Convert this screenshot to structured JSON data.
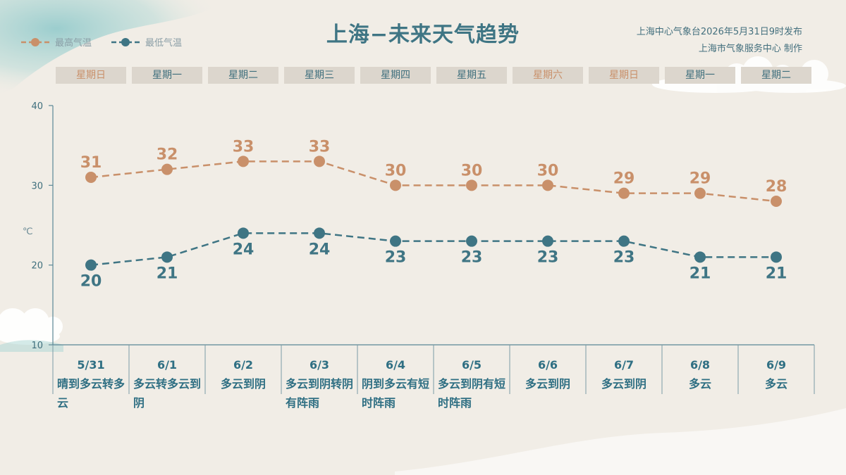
{
  "title": "上海−未来天气趋势",
  "publisher": {
    "line1": "上海中心气象台2026年5月31日9时发布",
    "line2": "上海市气象服务中心  制作"
  },
  "legend": {
    "high_label": "最高气温",
    "low_label": "最低气温"
  },
  "colors": {
    "high": "#c9906a",
    "low": "#3f7584",
    "title": "#3f7584"
  },
  "unit_label": "℃",
  "weekdays": [
    "星期日",
    "星期一",
    "星期二",
    "星期三",
    "星期四",
    "星期五",
    "星期六",
    "星期日",
    "星期一",
    "星期二"
  ],
  "weekend_flags": [
    true,
    false,
    false,
    false,
    false,
    false,
    true,
    true,
    false,
    false
  ],
  "dates": [
    "5/31",
    "6/1",
    "6/2",
    "6/3",
    "6/4",
    "6/5",
    "6/6",
    "6/7",
    "6/8",
    "6/9"
  ],
  "weather": [
    "晴到多云转多云",
    "多云转多云到阴",
    "多云到阴",
    "多云到阴转阴有阵雨",
    "阴到多云有短时阵雨",
    "多云到阴有短时阵雨",
    "多云到阴",
    "多云到阴",
    "多云",
    "多云"
  ],
  "chart_data": {
    "type": "line",
    "categories": [
      "5/31",
      "6/1",
      "6/2",
      "6/3",
      "6/4",
      "6/5",
      "6/6",
      "6/7",
      "6/8",
      "6/9"
    ],
    "series": [
      {
        "name": "最高气温",
        "values": [
          31,
          32,
          33,
          33,
          30,
          30,
          30,
          29,
          29,
          28
        ]
      },
      {
        "name": "最低气温",
        "values": [
          20,
          21,
          24,
          24,
          23,
          23,
          23,
          23,
          21,
          21
        ]
      }
    ],
    "ylim": [
      10,
      40
    ],
    "yticks": [
      10,
      20,
      30,
      40
    ],
    "ylabel": "℃",
    "legend_position": "top-left",
    "grid": false
  }
}
